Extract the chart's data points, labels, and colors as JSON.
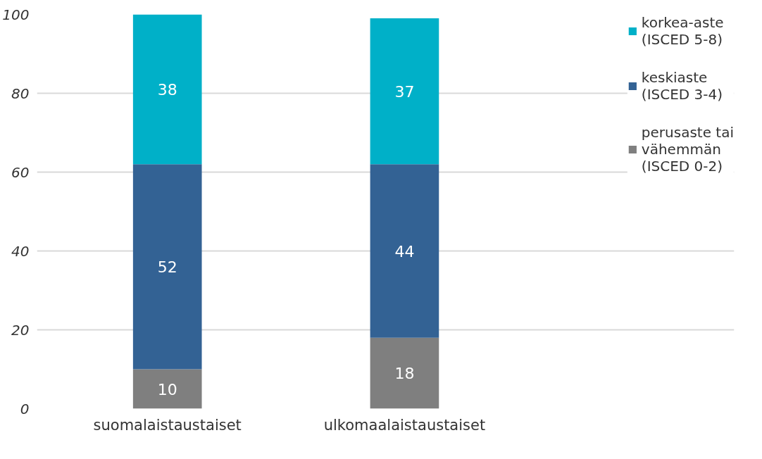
{
  "chart_data": {
    "type": "bar",
    "stacked": true,
    "categories": [
      "suomalaistaustaiset",
      "ulkomaalaistaustaiset"
    ],
    "series": [
      {
        "name": "perusaste tai vähemmän (ISCED 0-2)",
        "color": "#7f7f7f",
        "values": [
          10,
          18
        ]
      },
      {
        "name": "keskiaste (ISCED 3-4)",
        "color": "#336294",
        "values": [
          52,
          44
        ]
      },
      {
        "name": "korkea-aste (ISCED 5-8)",
        "color": "#00b0c8",
        "values": [
          38,
          37
        ]
      }
    ],
    "ylim": [
      0,
      100
    ],
    "yticks": [
      0,
      20,
      40,
      60,
      80,
      100
    ],
    "grid": "y",
    "legend": "top right",
    "data_labels": true
  }
}
